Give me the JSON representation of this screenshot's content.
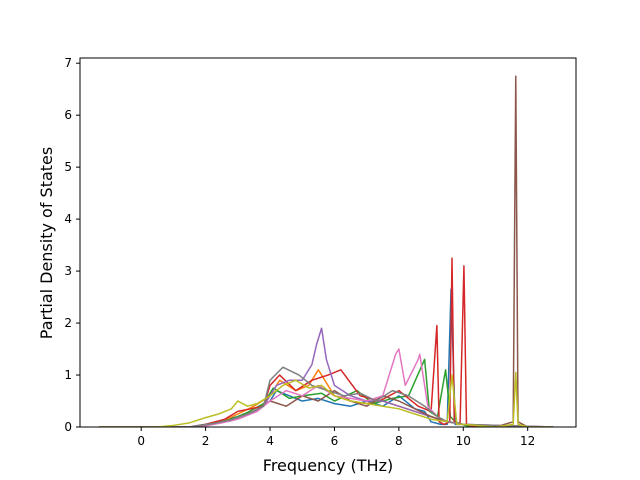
{
  "chart_data": {
    "type": "line",
    "title": "",
    "xlabel": "Frequency (THz)",
    "ylabel": "Partial Density of States",
    "xlim": [
      -1.9,
      13.5
    ],
    "ylim": [
      0,
      7.1
    ],
    "xticks": [
      0,
      2,
      4,
      6,
      8,
      10,
      12
    ],
    "yticks": [
      0,
      1,
      2,
      3,
      4,
      5,
      6,
      7
    ],
    "grid": false,
    "legend": "none",
    "colors": [
      "#1f77b4",
      "#ff7f0e",
      "#2ca02c",
      "#d62728",
      "#9467bd",
      "#8c564b",
      "#e377c2",
      "#7f7f7f",
      "#bcbd22",
      "#17becf"
    ],
    "series": [
      {
        "x": [
          -1.3,
          1.5,
          2.0,
          2.5,
          3.0,
          3.5,
          4.0,
          4.2,
          4.6,
          5.0,
          5.5,
          6.0,
          6.5,
          7.0,
          7.5,
          8.0,
          8.5,
          8.8,
          9.0,
          9.3,
          9.5,
          9.62,
          9.75,
          10.0,
          10.5,
          11.0,
          11.6,
          12.0,
          12.8
        ],
        "y": [
          0,
          0,
          0.05,
          0.12,
          0.2,
          0.3,
          0.5,
          0.7,
          0.6,
          0.5,
          0.55,
          0.45,
          0.4,
          0.5,
          0.4,
          0.6,
          0.35,
          0.3,
          0.1,
          0.05,
          0.05,
          2.65,
          0.05,
          0.05,
          0,
          0,
          0,
          0,
          0
        ]
      },
      {
        "x": [
          -1.3,
          1.5,
          2.0,
          2.5,
          3.0,
          3.5,
          4.0,
          4.3,
          4.8,
          5.2,
          5.5,
          6.0,
          6.5,
          7.0,
          7.5,
          8.0,
          8.5,
          9.0,
          9.5,
          10.0,
          11.0,
          12.8
        ],
        "y": [
          0,
          0,
          0.04,
          0.1,
          0.25,
          0.4,
          0.6,
          0.9,
          0.7,
          0.8,
          1.1,
          0.6,
          0.5,
          0.45,
          0.5,
          0.4,
          0.3,
          0.2,
          0.1,
          0.05,
          0,
          0
        ]
      },
      {
        "x": [
          -1.3,
          1.6,
          2.2,
          2.8,
          3.3,
          3.8,
          4.1,
          4.6,
          5.0,
          5.6,
          6.0,
          6.7,
          7.2,
          7.8,
          8.3,
          8.8,
          8.95,
          9.2,
          9.45,
          9.6,
          9.75,
          10.2,
          12.8
        ],
        "y": [
          0,
          0,
          0.06,
          0.15,
          0.28,
          0.45,
          0.75,
          0.55,
          0.6,
          0.65,
          0.5,
          0.7,
          0.45,
          0.55,
          0.6,
          1.3,
          0.3,
          0.2,
          1.1,
          0.2,
          0.1,
          0,
          0
        ]
      },
      {
        "x": [
          -1.3,
          1.5,
          2.0,
          2.6,
          3.0,
          3.4,
          3.8,
          4.0,
          4.3,
          4.8,
          5.3,
          5.8,
          6.2,
          6.8,
          7.4,
          8.0,
          8.6,
          9.0,
          9.18,
          9.25,
          9.4,
          9.58,
          9.65,
          9.72,
          9.9,
          10.02,
          10.1,
          10.4,
          12.8
        ],
        "y": [
          0,
          0,
          0.05,
          0.15,
          0.3,
          0.35,
          0.4,
          0.8,
          1.0,
          0.7,
          0.9,
          1.0,
          1.1,
          0.6,
          0.5,
          0.7,
          0.4,
          0.3,
          1.95,
          0.1,
          0.05,
          0.1,
          3.25,
          0.1,
          0.05,
          3.1,
          0.05,
          0,
          0
        ]
      },
      {
        "x": [
          -1.3,
          1.5,
          2.2,
          2.8,
          3.2,
          3.8,
          4.2,
          4.6,
          5.0,
          5.3,
          5.45,
          5.6,
          5.75,
          6.0,
          6.5,
          7.0,
          7.5,
          8.0,
          8.5,
          9.0,
          9.5,
          10.0,
          12.8
        ],
        "y": [
          0,
          0,
          0.05,
          0.12,
          0.2,
          0.4,
          0.8,
          0.9,
          0.9,
          1.2,
          1.6,
          1.9,
          1.3,
          0.8,
          0.6,
          0.5,
          0.5,
          0.4,
          0.3,
          0.2,
          0.1,
          0.05,
          0
        ]
      },
      {
        "x": [
          -1.3,
          1.5,
          2.0,
          2.6,
          3.0,
          3.5,
          4.0,
          4.5,
          5.0,
          5.5,
          6.0,
          6.5,
          7.0,
          7.5,
          8.0,
          8.5,
          9.0,
          9.5,
          10.0,
          11.0,
          11.55,
          11.63,
          11.7,
          12.0,
          12.8
        ],
        "y": [
          0,
          0,
          0.05,
          0.1,
          0.18,
          0.3,
          0.5,
          0.4,
          0.6,
          0.5,
          0.7,
          0.5,
          0.4,
          0.6,
          0.5,
          0.35,
          0.2,
          0.1,
          0.05,
          0,
          0.1,
          6.75,
          0.1,
          0,
          0
        ]
      },
      {
        "x": [
          -1.3,
          1.8,
          2.5,
          3.0,
          3.6,
          4.0,
          4.5,
          5.0,
          5.5,
          6.0,
          6.5,
          7.0,
          7.5,
          7.9,
          8.0,
          8.2,
          8.6,
          8.65,
          8.9,
          9.2,
          9.5,
          10.0,
          12.8
        ],
        "y": [
          0,
          0,
          0.08,
          0.15,
          0.3,
          0.5,
          0.7,
          0.6,
          0.8,
          0.6,
          0.55,
          0.5,
          0.6,
          1.4,
          1.5,
          0.8,
          1.3,
          1.4,
          0.4,
          0.2,
          0.1,
          0.05,
          0
        ]
      },
      {
        "x": [
          -1.3,
          1.5,
          2.2,
          2.8,
          3.3,
          3.8,
          4.0,
          4.4,
          4.9,
          5.3,
          5.8,
          6.3,
          6.8,
          7.3,
          7.8,
          8.3,
          8.8,
          9.2,
          9.5,
          10.0,
          12.8
        ],
        "y": [
          0,
          0,
          0.06,
          0.14,
          0.25,
          0.4,
          0.9,
          1.15,
          1.0,
          0.8,
          0.7,
          0.6,
          0.65,
          0.5,
          0.7,
          0.6,
          0.4,
          0.2,
          0.1,
          0.05,
          0
        ]
      },
      {
        "x": [
          -1.3,
          0.5,
          1.0,
          1.5,
          2.0,
          2.4,
          2.8,
          3.0,
          3.3,
          3.6,
          4.0,
          4.4,
          4.8,
          5.2,
          5.6,
          6.0,
          6.5,
          7.0,
          7.5,
          8.0,
          8.5,
          9.0,
          9.5,
          9.65,
          9.8,
          10.0,
          11.0,
          11.55,
          11.63,
          11.7,
          12.0,
          12.8
        ],
        "y": [
          0,
          0,
          0.03,
          0.08,
          0.18,
          0.25,
          0.35,
          0.5,
          0.4,
          0.45,
          0.6,
          0.8,
          0.9,
          0.75,
          0.8,
          0.6,
          0.5,
          0.45,
          0.4,
          0.35,
          0.25,
          0.15,
          0.1,
          1.0,
          0.05,
          0.05,
          0,
          0.05,
          1.05,
          0.05,
          0,
          0
        ]
      }
    ]
  }
}
